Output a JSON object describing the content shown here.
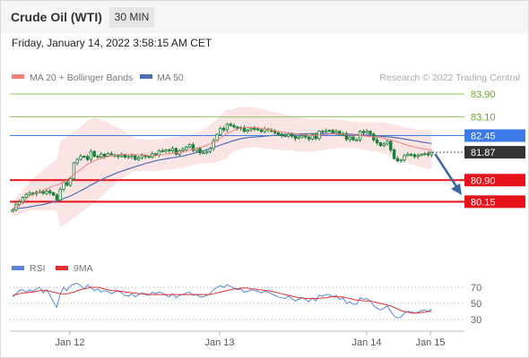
{
  "header": {
    "title": "Crude Oil (WTI)",
    "interval": "30 MIN"
  },
  "timestamp": "Friday, January 14, 2022 3:58:15 AM CET",
  "legend": {
    "ma20": "MA 20 + Bollinger Bands",
    "ma50": "MA 50",
    "credit": "Research © 2022 Trading Central"
  },
  "rsi_legend": {
    "rsi": "RSI",
    "ma9": "9MA"
  },
  "colors": {
    "candle": "#1e7d3a",
    "ma20": "#f0807a",
    "bollinger_fill": "#fbe1e1",
    "ma50": "#4d6fb3",
    "resistance": "#8fc35a",
    "support": "#e8121a",
    "current_price": "#333333",
    "ma50_level": "#3b7ae8",
    "arrow": "#3a66a8",
    "rsi": "#5b86d8",
    "rsi_ma": "#e23030"
  },
  "chart_data": [
    {
      "type": "candlestick",
      "title": "Crude Oil (WTI)",
      "interval": "30 MIN",
      "x_tick_labels": [
        "Jan 12",
        "Jan 13",
        "Jan 14",
        "Jan 15"
      ],
      "levels": [
        {
          "value": 83.9,
          "label": "83.90",
          "kind": "resistance"
        },
        {
          "value": 83.1,
          "label": "83.10",
          "kind": "resistance"
        },
        {
          "value": 82.45,
          "label": "82.45",
          "kind": "ma50"
        },
        {
          "value": 81.87,
          "label": "81.87",
          "kind": "current"
        },
        {
          "value": 80.9,
          "label": "80.90",
          "kind": "support"
        },
        {
          "value": 80.15,
          "label": "80.15",
          "kind": "support"
        }
      ],
      "close": [
        79.86,
        80.05,
        80.15,
        80.3,
        80.4,
        80.45,
        80.42,
        80.48,
        80.5,
        80.44,
        80.52,
        80.46,
        80.38,
        80.21,
        80.58,
        80.82,
        80.72,
        80.95,
        81.5,
        81.62,
        81.73,
        81.72,
        81.62,
        81.9,
        81.73,
        81.7,
        81.8,
        81.73,
        81.82,
        81.78,
        81.75,
        81.72,
        81.78,
        81.7,
        81.72,
        81.75,
        81.62,
        81.68,
        81.76,
        81.72,
        81.7,
        81.82,
        81.78,
        81.92,
        81.9,
        81.95,
        81.92,
        82.0,
        81.8,
        81.92,
        81.97,
        82.05,
        82.13,
        81.93,
        82.0,
        81.85,
        81.85,
        81.9,
        82.0,
        82.28,
        82.49,
        82.7,
        82.65,
        82.85,
        82.8,
        82.75,
        82.7,
        82.73,
        82.6,
        82.65,
        82.7,
        82.68,
        82.65,
        82.59,
        82.68,
        82.65,
        82.6,
        82.55,
        82.5,
        82.45,
        82.43,
        82.5,
        82.43,
        82.35,
        82.4,
        82.45,
        82.4,
        82.33,
        82.48,
        82.35,
        82.6,
        82.58,
        82.62,
        82.63,
        82.55,
        82.6,
        82.48,
        82.52,
        82.32,
        82.4,
        82.3,
        82.3,
        82.6,
        82.55,
        82.6,
        82.5,
        82.3,
        82.2,
        82.1,
        82.16,
        82.25,
        81.95,
        81.65,
        81.57,
        81.6,
        81.75,
        81.8,
        81.78,
        81.72,
        81.76,
        81.8,
        81.82,
        81.78,
        81.87
      ],
      "series": [
        {
          "name": "MA 20 + Bollinger Bands",
          "values": [
            79.9,
            79.96,
            80.05,
            80.15,
            80.25,
            80.35,
            80.4,
            80.45,
            80.5,
            80.55,
            80.6,
            80.65,
            80.7,
            80.73,
            80.77,
            80.83,
            80.92,
            81.0,
            81.1,
            81.18,
            81.27,
            81.36,
            81.45,
            81.52,
            81.57,
            81.62,
            81.66,
            81.69,
            81.72,
            81.75,
            81.76,
            81.78,
            81.8,
            81.8,
            81.8,
            81.8,
            81.79,
            81.78,
            81.78,
            81.77,
            81.76,
            81.76,
            81.76,
            81.77,
            81.79,
            81.81,
            81.82,
            81.83,
            81.85,
            81.86,
            81.88,
            81.91,
            81.94,
            81.97,
            82.0,
            82.03,
            82.07,
            82.11,
            82.16,
            82.22,
            82.29,
            82.37,
            82.45,
            82.52,
            82.58,
            82.64,
            82.68,
            82.71,
            82.73,
            82.74,
            82.74,
            82.73,
            82.72,
            82.7,
            82.68,
            82.66,
            82.64,
            82.62,
            82.6,
            82.58,
            82.56,
            82.55,
            82.53,
            82.51,
            82.49,
            82.48,
            82.47,
            82.46,
            82.46,
            82.46,
            82.47,
            82.48,
            82.49,
            82.5,
            82.51,
            82.51,
            82.51,
            82.5,
            82.49,
            82.48,
            82.47,
            82.46,
            82.45,
            82.44,
            82.43,
            82.42,
            82.41,
            82.4,
            82.38,
            82.36,
            82.33,
            82.3,
            82.27,
            82.23,
            82.19,
            82.15,
            82.11,
            82.08,
            82.05,
            82.02,
            82.0,
            81.98,
            81.96,
            81.95
          ]
        },
        {
          "name": "MA 50",
          "values": [
            79.9,
            79.91,
            79.92,
            79.93,
            79.95,
            79.97,
            79.99,
            80.01,
            80.03,
            80.05,
            80.08,
            80.11,
            80.14,
            80.17,
            80.21,
            80.26,
            80.3,
            80.35,
            80.41,
            80.47,
            80.53,
            80.59,
            80.66,
            80.73,
            80.79,
            80.85,
            80.91,
            80.97,
            81.02,
            81.07,
            81.12,
            81.17,
            81.21,
            81.25,
            81.29,
            81.33,
            81.37,
            81.4,
            81.44,
            81.48,
            81.51,
            81.54,
            81.57,
            81.6,
            81.62,
            81.64,
            81.66,
            81.68,
            81.7,
            81.72,
            81.74,
            81.77,
            81.8,
            81.83,
            81.86,
            81.89,
            81.92,
            81.96,
            82.0,
            82.04,
            82.08,
            82.12,
            82.16,
            82.2,
            82.24,
            82.28,
            82.31,
            82.34,
            82.36,
            82.38,
            82.39,
            82.4,
            82.41,
            82.42,
            82.43,
            82.44,
            82.45,
            82.46,
            82.47,
            82.48,
            82.49,
            82.49,
            82.5,
            82.5,
            82.51,
            82.51,
            82.51,
            82.52,
            82.52,
            82.52,
            82.52,
            82.52,
            82.52,
            82.52,
            82.52,
            82.51,
            82.51,
            82.51,
            82.5,
            82.5,
            82.49,
            82.48,
            82.48,
            82.47,
            82.47,
            82.46,
            82.45,
            82.44,
            82.43,
            82.42,
            82.41,
            82.4,
            82.38,
            82.37,
            82.35,
            82.33,
            82.31,
            82.29,
            82.27,
            82.25,
            82.23,
            82.21,
            82.19,
            82.18
          ]
        }
      ]
    },
    {
      "type": "line",
      "series": [
        {
          "name": "RSI",
          "values": [
            58,
            62,
            66,
            67,
            64,
            67,
            65,
            68,
            70,
            63,
            67,
            60,
            52,
            45,
            62,
            70,
            66,
            72,
            74,
            75,
            72,
            68,
            73,
            70,
            66,
            68,
            64,
            66,
            65,
            62,
            64,
            66,
            63,
            60,
            59,
            62,
            58,
            61,
            63,
            61,
            60,
            64,
            62,
            64,
            63,
            60,
            58,
            62,
            57,
            60,
            61,
            63,
            64,
            60,
            61,
            58,
            58,
            60,
            62,
            67,
            70,
            72,
            70,
            73,
            71,
            69,
            67,
            68,
            64,
            65,
            67,
            66,
            65,
            63,
            65,
            64,
            62,
            60,
            58,
            57,
            56,
            59,
            56,
            53,
            55,
            57,
            55,
            52,
            57,
            53,
            60,
            59,
            61,
            61,
            58,
            60,
            55,
            57,
            50,
            52,
            49,
            49,
            57,
            55,
            56,
            53,
            47,
            44,
            42,
            44,
            47,
            40,
            34,
            32,
            33,
            38,
            40,
            40,
            38,
            39,
            41,
            42,
            40,
            43
          ]
        },
        {
          "name": "9MA",
          "values": [
            60,
            61,
            62,
            63,
            63,
            64,
            64,
            65,
            66,
            66,
            66,
            65,
            64,
            63,
            62,
            62,
            62,
            63,
            64,
            66,
            67,
            68,
            69,
            70,
            70,
            70,
            69,
            68,
            67,
            66,
            66,
            65,
            65,
            64,
            64,
            63,
            63,
            62,
            62,
            62,
            61,
            61,
            61,
            61,
            61,
            61,
            61,
            61,
            61,
            61,
            61,
            61,
            61,
            61,
            61,
            61,
            61,
            61,
            61,
            62,
            63,
            64,
            65,
            66,
            67,
            68,
            68,
            69,
            69,
            69,
            68,
            68,
            67,
            67,
            66,
            66,
            65,
            64,
            63,
            62,
            61,
            60,
            59,
            58,
            57,
            57,
            56,
            56,
            56,
            56,
            56,
            57,
            57,
            58,
            58,
            58,
            58,
            58,
            57,
            56,
            55,
            54,
            54,
            53,
            53,
            53,
            52,
            51,
            50,
            49,
            48,
            47,
            45,
            43,
            41,
            40,
            39,
            38,
            38,
            38,
            39,
            39,
            40,
            40
          ]
        }
      ],
      "y_tick_labels": [
        "70",
        "50",
        "30"
      ],
      "ylim": [
        25,
        80
      ]
    }
  ]
}
